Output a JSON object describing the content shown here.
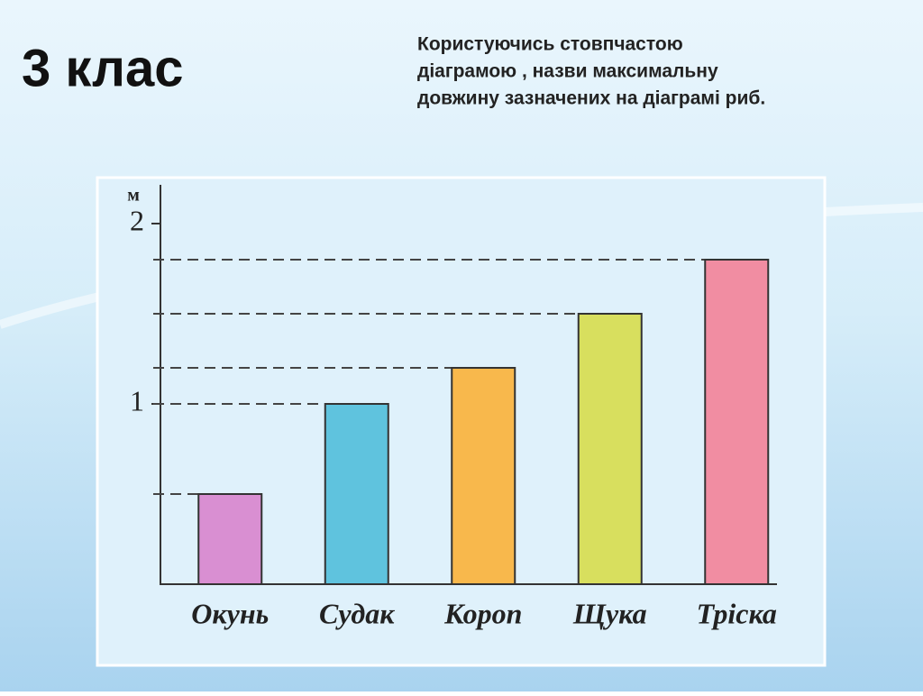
{
  "slide": {
    "title": "3 клас",
    "task_lines": [
      "Користуючись стовпчастою",
      "діаграмою , назви максимальну",
      "довжину зазначених на діаграмі риб."
    ]
  },
  "chart_data": {
    "type": "bar",
    "y_label": "м",
    "categories": [
      "Окунь",
      "Судак",
      "Короп",
      "Щука",
      "Тріска"
    ],
    "values": [
      0.5,
      1.0,
      1.2,
      1.5,
      1.8
    ],
    "colors": [
      "#d98fd2",
      "#5fc3de",
      "#f8b84c",
      "#d8df5e",
      "#f18da2"
    ],
    "ylim": [
      0,
      2.2
    ],
    "yticks": [
      1,
      2
    ],
    "guide_lines": true
  }
}
